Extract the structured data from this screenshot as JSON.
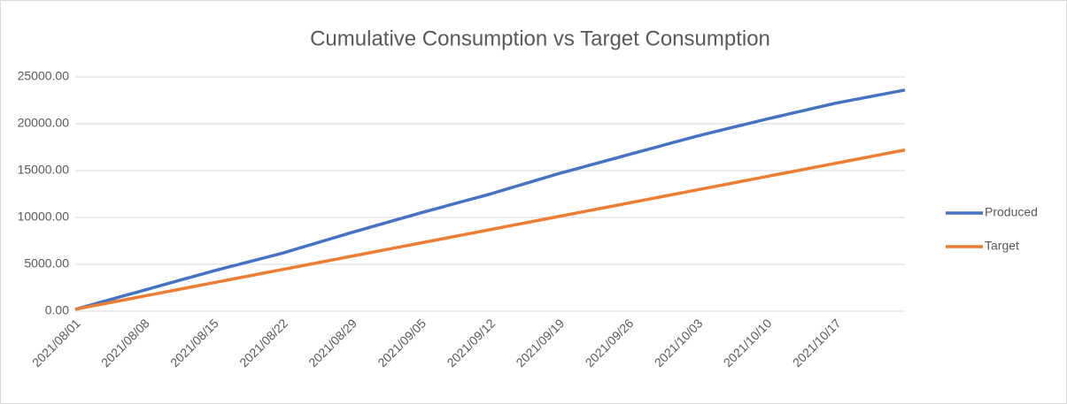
{
  "chart_data": {
    "type": "line",
    "title": "Cumulative Consumption vs Target Consumption",
    "categories": [
      "2021/08/01",
      null,
      null,
      null,
      null,
      null,
      null,
      "2021/08/08",
      null,
      null,
      null,
      null,
      null,
      null,
      "2021/08/15",
      null,
      null,
      null,
      null,
      null,
      null,
      "2021/08/22",
      null,
      null,
      null,
      null,
      null,
      null,
      "2021/08/29",
      null,
      null,
      null,
      null,
      null,
      null,
      "2021/09/05",
      null,
      null,
      null,
      null,
      null,
      null,
      "2021/09/12",
      null,
      null,
      null,
      null,
      null,
      null,
      "2021/09/19",
      null,
      null,
      null,
      null,
      null,
      null,
      "2021/09/26",
      null,
      null,
      null,
      null,
      null,
      null,
      "2021/10/03",
      null,
      null,
      null,
      null,
      null,
      null,
      "2021/10/10",
      null,
      null,
      null,
      null,
      null,
      null,
      "2021/10/17",
      null,
      null,
      null,
      null,
      null,
      null,
      null
    ],
    "series": [
      {
        "name": "Produced",
        "color": "#4472c4",
        "values": [
          200,
          493,
          786,
          1079,
          1371,
          1664,
          1957,
          2250,
          2543,
          2836,
          3129,
          3421,
          3714,
          4007,
          4300,
          4571,
          4843,
          5114,
          5386,
          5657,
          5929,
          6200,
          6514,
          6829,
          7143,
          7457,
          7771,
          8086,
          8400,
          8700,
          9000,
          9300,
          9600,
          9900,
          10200,
          10500,
          10786,
          11071,
          11357,
          11643,
          11929,
          12214,
          12500,
          12814,
          13129,
          13443,
          13757,
          14071,
          14386,
          14700,
          14986,
          15271,
          15557,
          15843,
          16129,
          16414,
          16700,
          16986,
          17271,
          17557,
          17843,
          18129,
          18414,
          18700,
          18957,
          19214,
          19471,
          19729,
          19986,
          20243,
          20500,
          20743,
          20986,
          21229,
          21471,
          21714,
          21957,
          22200,
          22400,
          22600,
          22800,
          23000,
          23200,
          23400,
          23600
        ]
      },
      {
        "name": "Target",
        "color": "#ed7d31",
        "values": [
          202,
          405,
          607,
          810,
          1012,
          1214,
          1417,
          1619,
          1822,
          2024,
          2226,
          2429,
          2631,
          2834,
          3036,
          3238,
          3441,
          3643,
          3846,
          4048,
          4250,
          4453,
          4655,
          4858,
          5060,
          5262,
          5465,
          5667,
          5870,
          6072,
          6274,
          6477,
          6679,
          6882,
          7084,
          7286,
          7489,
          7691,
          7894,
          8096,
          8298,
          8501,
          8703,
          8906,
          9108,
          9310,
          9513,
          9715,
          9918,
          10120,
          10322,
          10525,
          10727,
          10930,
          11132,
          11334,
          11537,
          11739,
          11942,
          12144,
          12346,
          12549,
          12751,
          12954,
          13156,
          13358,
          13561,
          13763,
          13966,
          14168,
          14370,
          14573,
          14775,
          14978,
          15180,
          15382,
          15585,
          15787,
          15990,
          16192,
          16394,
          16597,
          16799,
          17002,
          17204
        ]
      }
    ],
    "ylim": [
      0,
      25000
    ],
    "yticks": [
      {
        "value": 0,
        "label": "0.00"
      },
      {
        "value": 5000,
        "label": "5000.00"
      },
      {
        "value": 10000,
        "label": "10000.00"
      },
      {
        "value": 15000,
        "label": "15000.00"
      },
      {
        "value": 20000,
        "label": "20000.00"
      },
      {
        "value": 25000,
        "label": "25000.00"
      }
    ],
    "grid": true,
    "legend": "right"
  }
}
